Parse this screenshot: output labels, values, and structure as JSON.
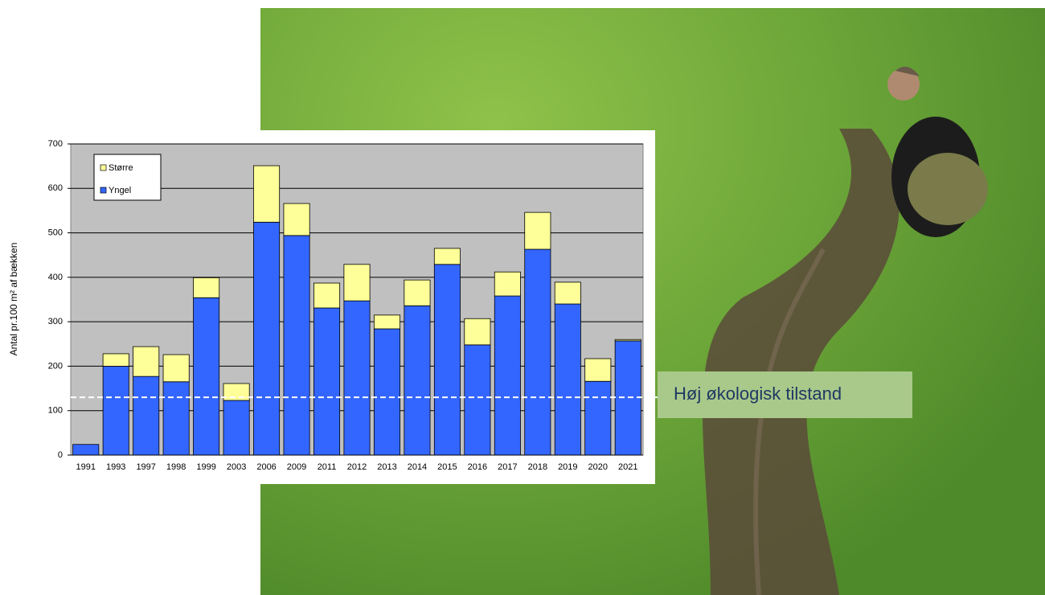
{
  "chart_data": {
    "type": "stacked-bar",
    "y_label": "Antal pr.100 m² af bækken",
    "categories": [
      "1991",
      "1993",
      "1997",
      "1998",
      "1999",
      "2003",
      "2006",
      "2009",
      "2011",
      "2012",
      "2013",
      "2014",
      "2015",
      "2016",
      "2017",
      "2018",
      "2019",
      "2020",
      "2021"
    ],
    "series": [
      {
        "name": "Yngel",
        "color": "#3366ff",
        "values": [
          24,
          200,
          177,
          165,
          354,
          123,
          524,
          494,
          331,
          347,
          284,
          336,
          429,
          248,
          358,
          463,
          340,
          166,
          257
        ]
      },
      {
        "name": "Større",
        "color": "#ffff99",
        "values": [
          0,
          28,
          67,
          61,
          45,
          38,
          127,
          72,
          56,
          82,
          31,
          58,
          36,
          59,
          54,
          83,
          49,
          51,
          3
        ]
      }
    ],
    "ylim": [
      0,
      700
    ],
    "yticks": [
      0,
      100,
      200,
      300,
      400,
      500,
      600,
      700
    ],
    "grid": true,
    "threshold": {
      "value": 130,
      "label": "Høj økologisk tilstand"
    }
  }
}
